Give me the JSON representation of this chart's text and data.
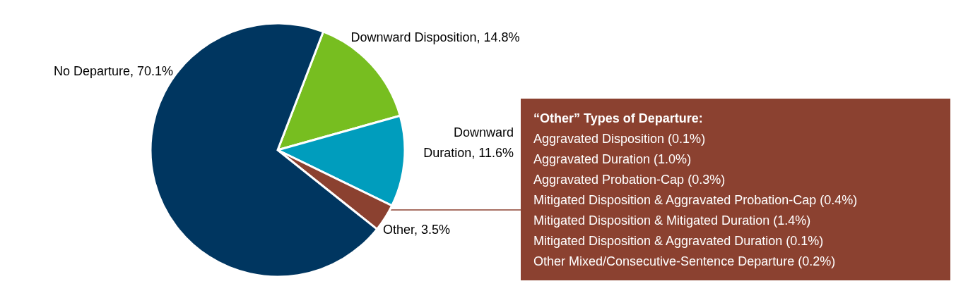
{
  "chart_data": {
    "type": "pie",
    "categories": [
      "Downward Disposition",
      "Downward Duration",
      "Other",
      "No Departure"
    ],
    "values": [
      14.8,
      11.6,
      3.5,
      70.1
    ],
    "value_labels": [
      "14.8%",
      "11.6%",
      "3.5%",
      "70.1%"
    ],
    "colors": [
      "#77be20",
      "#009dbd",
      "#8b4130",
      "#003660"
    ],
    "legend": false,
    "annotations": [
      "“Other” Types of Departure:",
      "Aggravated Disposition (0.1%)",
      "Aggravated Duration (1.0%)",
      "Aggravated Probation-Cap (0.3%)",
      "Mitigated Disposition & Aggravated Probation-Cap (0.4%)",
      "Mitigated Disposition & Mitigated Duration (1.4%)",
      "Mitigated Disposition & Aggravated Duration (0.1%)",
      "Other Mixed/Consecutive-Sentence Departure (0.2%)"
    ]
  }
}
